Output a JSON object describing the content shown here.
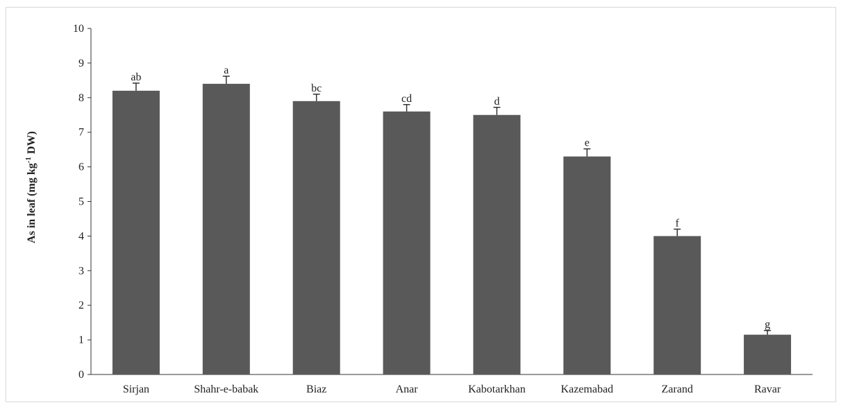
{
  "chart_data": {
    "type": "bar",
    "title": "",
    "xlabel": "",
    "ylabel": "As in leaf (mg kg-1 DW)",
    "ylabel_parts": {
      "pre": "As in leaf (mg kg",
      "sup": "-1",
      "post": " DW)"
    },
    "ylim": [
      0,
      10
    ],
    "yticks": [
      0,
      1,
      2,
      3,
      4,
      5,
      6,
      7,
      8,
      9,
      10
    ],
    "categories": [
      "Sirjan",
      "Shahr-e-babak",
      "Biaz",
      "Anar",
      "Kabotarkhan",
      "Kazemabad",
      "Zarand",
      "Ravar"
    ],
    "values": [
      8.2,
      8.4,
      7.9,
      7.6,
      7.5,
      6.3,
      4.0,
      1.15
    ],
    "errors": [
      0.22,
      0.22,
      0.2,
      0.2,
      0.22,
      0.22,
      0.2,
      0.12
    ],
    "labels": [
      "ab",
      "a",
      "bc",
      "cd",
      "d",
      "e",
      "f",
      "g"
    ],
    "bar_color": "#595959",
    "grid": false,
    "legend": "none"
  }
}
